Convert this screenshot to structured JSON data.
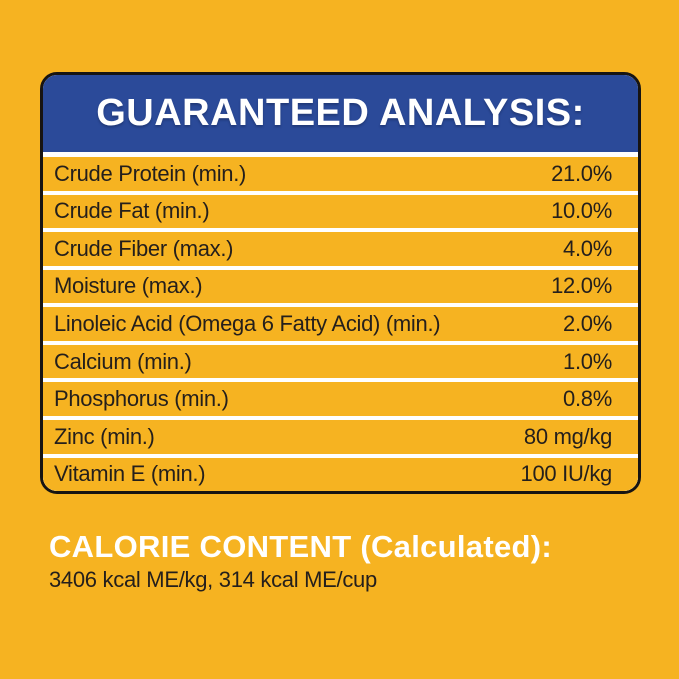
{
  "colors": {
    "background": "#F6B321",
    "header_bg": "#2B4A99",
    "panel_border": "#171412",
    "row_bg": "#F6B321",
    "row_text": "#241F1C",
    "header_text": "#FFFFFF"
  },
  "panel": {
    "title": "GUARANTEED ANALYSIS:",
    "rows": [
      {
        "label": "Crude Protein (min.)",
        "value": "21.0%"
      },
      {
        "label": "Crude Fat (min.)",
        "value": "10.0%"
      },
      {
        "label": "Crude Fiber (max.)",
        "value": "4.0%"
      },
      {
        "label": "Moisture (max.)",
        "value": "12.0%"
      },
      {
        "label": "Linoleic Acid (Omega 6 Fatty Acid) (min.)",
        "value": "2.0%"
      },
      {
        "label": "Calcium (min.)",
        "value": "1.0%"
      },
      {
        "label": "Phosphorus (min.)",
        "value": "0.8%"
      },
      {
        "label": "Zinc (min.)",
        "value": "80 mg/kg"
      },
      {
        "label": "Vitamin E (min.)",
        "value": "100 IU/kg"
      }
    ]
  },
  "calorie": {
    "heading": "CALORIE CONTENT (Calculated):",
    "details": "3406 kcal ME/kg, 314 kcal ME/cup"
  }
}
